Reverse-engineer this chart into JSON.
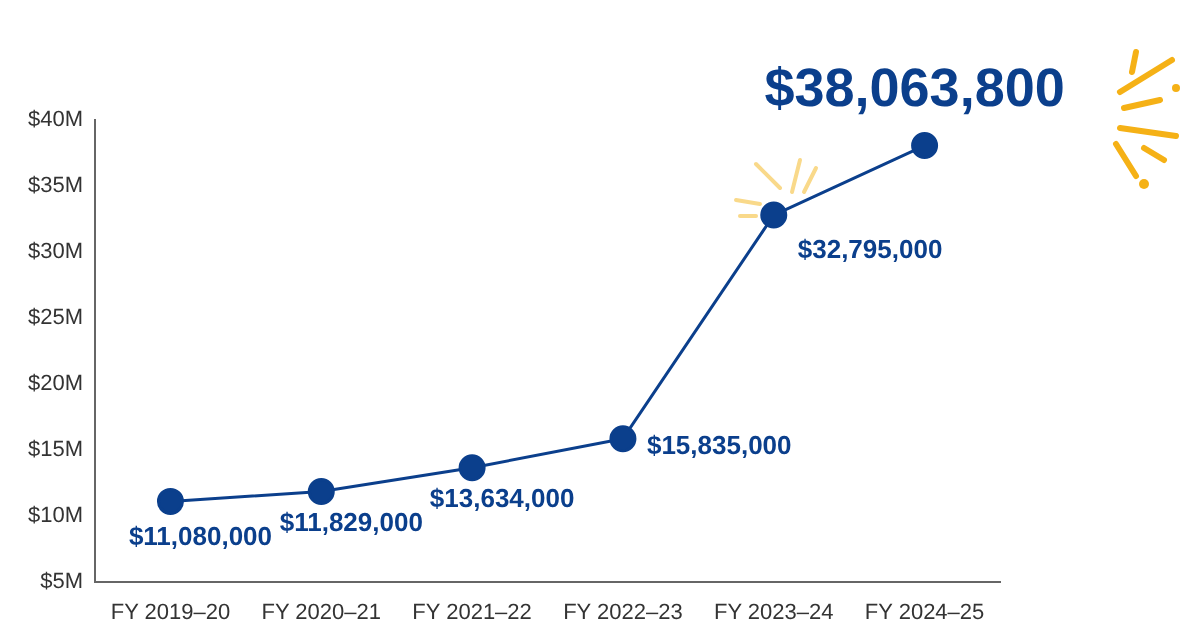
{
  "chart_data": {
    "type": "line",
    "categories": [
      "FY 2019–20",
      "FY 2020–21",
      "FY 2021–22",
      "FY 2022–23",
      "FY 2023–24",
      "FY 2024–25"
    ],
    "series": [
      {
        "color": "#0b3f8c",
        "values": [
          11080000,
          11829000,
          13634000,
          15835000,
          32795000,
          38063800
        ],
        "value_labels": [
          "$11,080,000",
          "$11,829,000",
          "$13,634,000",
          "$15,835,000",
          "$32,795,000",
          "$38,063,800"
        ]
      }
    ],
    "ylim": [
      5000000,
      40000000
    ],
    "yticks": [
      {
        "value": 5000000,
        "label": "$5M"
      },
      {
        "value": 10000000,
        "label": "$10M"
      },
      {
        "value": 15000000,
        "label": "$15M"
      },
      {
        "value": 20000000,
        "label": "$20M"
      },
      {
        "value": 25000000,
        "label": "$25M"
      },
      {
        "value": 30000000,
        "label": "$30M"
      },
      {
        "value": 35000000,
        "label": "$35M"
      },
      {
        "value": 40000000,
        "label": "$40M"
      }
    ],
    "grid": false,
    "legend": false,
    "marker": "circle",
    "line_style": "solid"
  }
}
